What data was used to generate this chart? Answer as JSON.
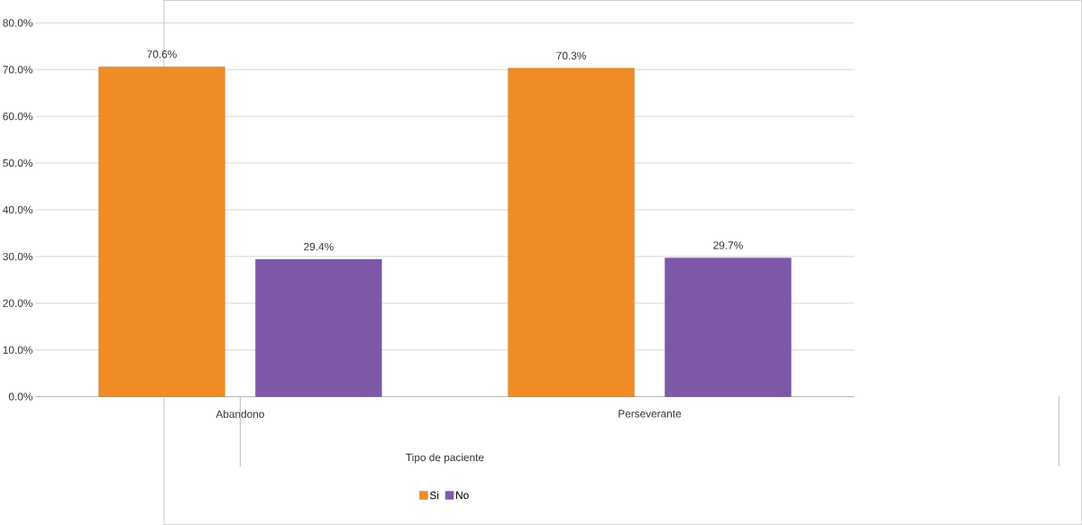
{
  "chart_data": {
    "type": "bar",
    "xlabel": "Tipo de paciente",
    "categories": [
      "Abandono",
      "Perseverante"
    ],
    "series": [
      {
        "name": "Si",
        "color": "#f08c26",
        "values": [
          70.6,
          70.3
        ],
        "value_labels": [
          "70.6%",
          "70.3%"
        ]
      },
      {
        "name": "No",
        "color": "#7d58a8",
        "values": [
          29.4,
          29.7
        ],
        "value_labels": [
          "29.4%",
          "29.7%"
        ]
      }
    ],
    "ylim": [
      0,
      80
    ],
    "yticks": [
      {
        "value": 0,
        "label": "0.0%"
      },
      {
        "value": 10,
        "label": "10.0%"
      },
      {
        "value": 20,
        "label": "20.0%"
      },
      {
        "value": 30,
        "label": "30.0%"
      },
      {
        "value": 40,
        "label": "40.0%"
      },
      {
        "value": 50,
        "label": "50.0%"
      },
      {
        "value": 60,
        "label": "60.0%"
      },
      {
        "value": 70,
        "label": "70.0%"
      },
      {
        "value": 80,
        "label": "80.0%"
      }
    ],
    "grid": "y",
    "legend": "bottom"
  }
}
